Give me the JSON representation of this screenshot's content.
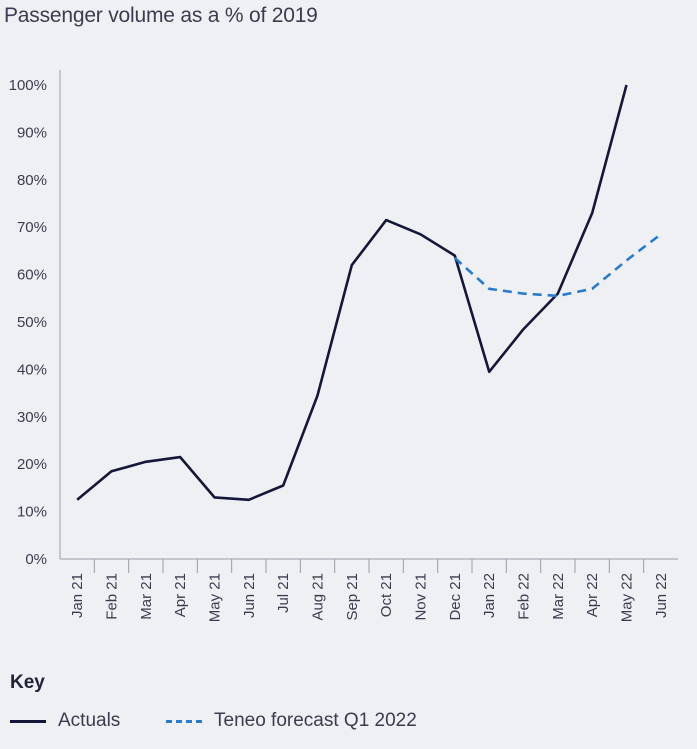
{
  "chart_data": {
    "type": "line",
    "title": "Passenger volume as a % of 2019",
    "xlabel": "",
    "ylabel": "",
    "categories": [
      "Jan 21",
      "Feb 21",
      "Mar 21",
      "Apr 21",
      "May 21",
      "Jun 21",
      "Jul 21",
      "Aug 21",
      "Sep 21",
      "Oct 21",
      "Nov 21",
      "Dec 21",
      "Jan 22",
      "Feb 22",
      "Mar 22",
      "Apr 22",
      "May 22",
      "Jun 22"
    ],
    "ylim": [
      0,
      100
    ],
    "yticks": [
      "0%",
      "10%",
      "20%",
      "30%",
      "40%",
      "50%",
      "60%",
      "70%",
      "80%",
      "90%",
      "100%"
    ],
    "grid": false,
    "series": [
      {
        "name": "Actuals",
        "color": "#14173a",
        "style": "solid",
        "values": [
          12.5,
          18.5,
          20.5,
          21.5,
          13,
          12.5,
          15.5,
          34.5,
          62,
          71.5,
          68.5,
          64,
          39.5,
          48.5,
          56,
          73,
          100,
          null
        ]
      },
      {
        "name": "Teneo forecast Q1 2022",
        "color": "#2a7ccb",
        "style": "dashed",
        "values": [
          null,
          null,
          null,
          null,
          null,
          null,
          null,
          null,
          null,
          null,
          null,
          63.5,
          57,
          56,
          55.5,
          57,
          63,
          68.5
        ]
      }
    ]
  },
  "legend": {
    "title": "Key",
    "items": [
      {
        "label": "Actuals",
        "style": "solid",
        "color": "#14173a"
      },
      {
        "label": "Teneo forecast Q1 2022",
        "style": "dashed",
        "color": "#2a7ccb"
      }
    ]
  }
}
